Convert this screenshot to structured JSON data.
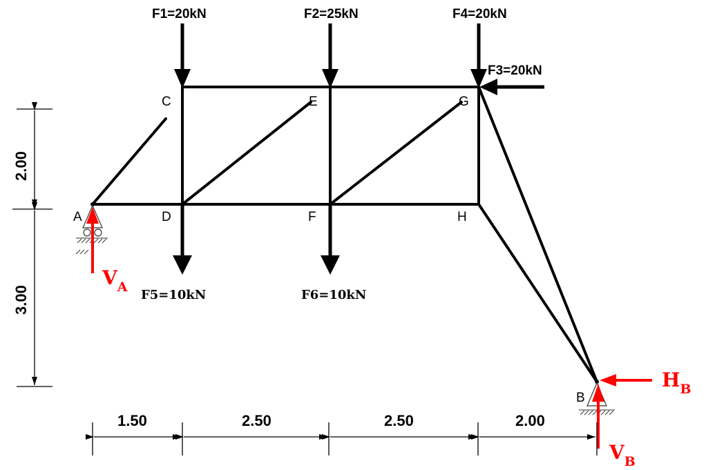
{
  "nodes": {
    "A": "A",
    "B": "B",
    "C": "C",
    "D": "D",
    "E": "E",
    "F": "F",
    "G": "G",
    "H": "H"
  },
  "loads": {
    "f1": "F1=20kN",
    "f2": "F2=25kN",
    "f3": "F3=20kN",
    "f4": "F4=20kN",
    "f5": "F5=10kN",
    "f6": "F6=10kN"
  },
  "reactions": {
    "va": {
      "main": "V",
      "sub": "A"
    },
    "vb": {
      "main": "V",
      "sub": "B"
    },
    "hb": {
      "main": "H",
      "sub": "B"
    }
  },
  "dimensions": {
    "vertical": [
      "2.00",
      "3.00"
    ],
    "horizontal": [
      "1.50",
      "2.50",
      "2.50",
      "2.00"
    ]
  },
  "colors": {
    "reaction": "#ff0000",
    "member": "#000000"
  }
}
